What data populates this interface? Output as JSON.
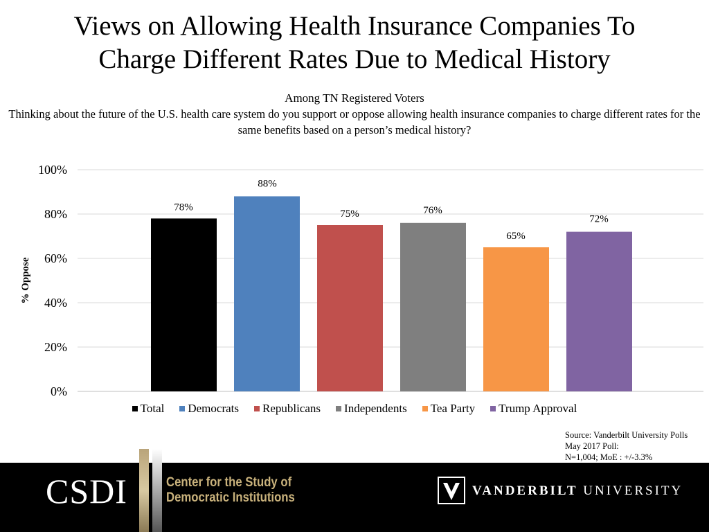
{
  "title_line1": "Views on Allowing Health Insurance Companies To",
  "title_line2": "Charge Different Rates Due to Medical History",
  "subtitle": "Among TN Registered Voters",
  "question": "Thinking about the future of the U.S. health care system do you support or oppose allowing health insurance companies to charge different rates for the same benefits based on a person’s medical history?",
  "chart_data": {
    "type": "bar",
    "title": "Views on Allowing Health Insurance Companies To Charge Different Rates Due to Medical History",
    "ylabel": "% Oppose",
    "xlabel": "",
    "ylim": [
      0,
      100
    ],
    "yticks": [
      "0%",
      "20%",
      "40%",
      "60%",
      "80%",
      "100%"
    ],
    "ytick_values": [
      0,
      20,
      40,
      60,
      80,
      100
    ],
    "grid": true,
    "legend_position": "bottom",
    "series": [
      {
        "name": "Total",
        "value": 78,
        "label": "78%",
        "color": "#000000"
      },
      {
        "name": "Democrats",
        "value": 88,
        "label": "88%",
        "color": "#4f81bd"
      },
      {
        "name": "Republicans",
        "value": 75,
        "label": "75%",
        "color": "#c0504d"
      },
      {
        "name": "Independents",
        "value": 76,
        "label": "76%",
        "color": "#7f7f7f"
      },
      {
        "name": "Tea Party",
        "value": 65,
        "label": "65%",
        "color": "#f79646"
      },
      {
        "name": "Trump Approval",
        "value": 72,
        "label": "72%",
        "color": "#8064a2"
      }
    ]
  },
  "source": {
    "line1": "Source: Vanderbilt University Polls",
    "line2": "May 2017 Poll:",
    "line3": "N=1,004; MoE : +/-3.3%"
  },
  "footer": {
    "csdi": "CSDI",
    "center_line1": "Center for the Study of",
    "center_line2": "Democratic Institutions",
    "vu_bold": "VANDERBILT",
    "vu_regular": "UNIVERSITY"
  }
}
